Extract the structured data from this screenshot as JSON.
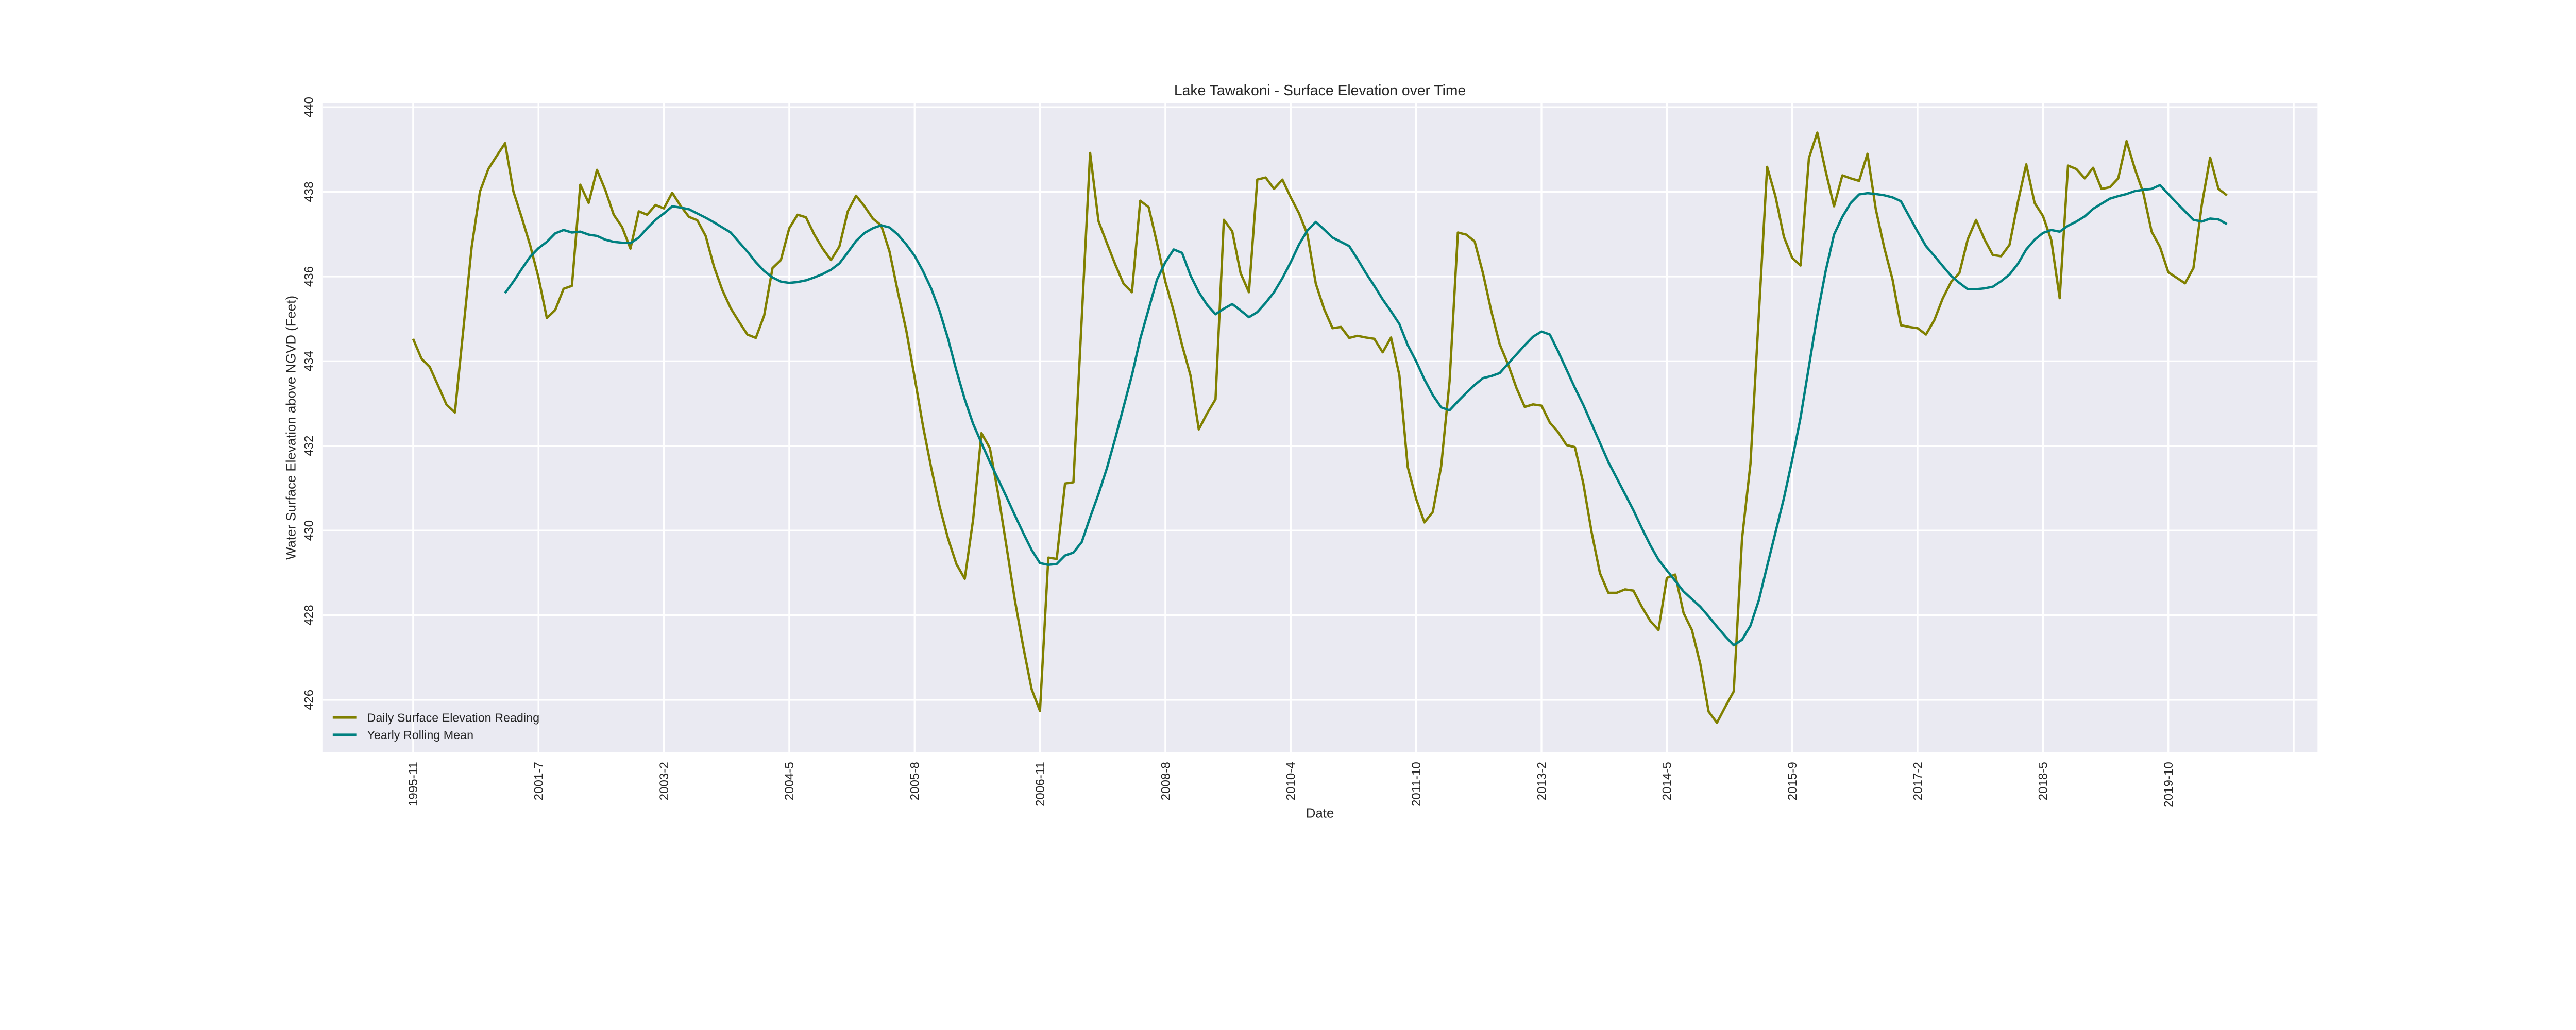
{
  "chart_data": {
    "type": "line",
    "title": "Lake Tawakoni - Surface Elevation over Time",
    "xlabel": "Date",
    "ylabel": "Water Surface Elevation above NGVD (Feet)",
    "x_is_index": true,
    "xlim": [
      -10.85,
      227.85
    ],
    "ylim": [
      424.76,
      440.1
    ],
    "x_ticks": [
      0,
      15,
      30,
      45,
      60,
      75,
      90,
      105,
      120,
      135,
      150,
      165,
      180,
      195,
      210,
      225
    ],
    "x_tick_labels": [
      "1995-11",
      "2001-7",
      "2003-2",
      "2004-5",
      "2005-8",
      "2006-11",
      "2008-8",
      "2010-4",
      "2011-10",
      "2013-2",
      "2014-5",
      "2015-9",
      "2017-2",
      "2018-5",
      "2019-10",
      ""
    ],
    "y_ticks": [
      426,
      428,
      430,
      432,
      434,
      436,
      438,
      440
    ],
    "y_tick_labels": [
      "426",
      "428",
      "430",
      "432",
      "434",
      "436",
      "438",
      "440"
    ],
    "grid": true,
    "legend_position": "lower-left",
    "background_color": "#eaeaf2",
    "series": [
      {
        "name": "Daily Surface Elevation Reading",
        "color": "#808000",
        "values": [
          434.53,
          434.06,
          433.86,
          433.42,
          432.97,
          432.79,
          434.73,
          436.69,
          438.01,
          438.54,
          438.85,
          439.15,
          438.01,
          437.39,
          436.74,
          435.98,
          435.02,
          435.21,
          435.71,
          435.78,
          438.17,
          437.74,
          438.52,
          438.04,
          437.46,
          437.17,
          436.66,
          437.54,
          437.46,
          437.69,
          437.61,
          437.98,
          437.67,
          437.41,
          437.33,
          436.96,
          436.23,
          435.68,
          435.25,
          434.93,
          434.63,
          434.55,
          435.08,
          436.2,
          436.39,
          437.14,
          437.46,
          437.4,
          436.99,
          436.66,
          436.39,
          436.71,
          437.54,
          437.91,
          437.66,
          437.37,
          437.21,
          436.59,
          435.63,
          434.73,
          433.62,
          432.47,
          431.47,
          430.56,
          429.81,
          429.21,
          428.86,
          430.26,
          432.3,
          431.95,
          430.86,
          429.61,
          428.35,
          427.25,
          426.25,
          425.74,
          429.36,
          429.33,
          431.11,
          431.14,
          435.03,
          438.92,
          437.31,
          436.79,
          436.29,
          435.83,
          435.63,
          437.79,
          437.64,
          436.79,
          435.88,
          435.18,
          434.38,
          433.67,
          432.39,
          432.77,
          433.1,
          437.34,
          437.07,
          436.08,
          435.63,
          438.29,
          438.34,
          438.07,
          438.29,
          437.87,
          437.49,
          436.99,
          435.83,
          435.23,
          434.78,
          434.81,
          434.55,
          434.6,
          434.56,
          434.53,
          434.21,
          434.56,
          433.67,
          431.5,
          430.75,
          430.19,
          430.44,
          431.52,
          433.52,
          437.04,
          436.99,
          436.83,
          436.08,
          435.18,
          434.4,
          433.93,
          433.37,
          432.92,
          432.98,
          432.95,
          432.55,
          432.32,
          432.02,
          431.97,
          431.12,
          429.96,
          428.99,
          428.53,
          428.53,
          428.61,
          428.58,
          428.2,
          427.87,
          427.65,
          428.88,
          428.96,
          428.05,
          427.65,
          426.85,
          425.72,
          425.46,
          425.84,
          426.2,
          429.81,
          431.57,
          435.08,
          438.59,
          437.89,
          436.94,
          436.44,
          436.26,
          438.8,
          439.4,
          438.49,
          437.66,
          438.39,
          438.32,
          438.26,
          438.9,
          437.59,
          436.69,
          435.93,
          434.85,
          434.81,
          434.78,
          434.63,
          434.97,
          435.48,
          435.87,
          436.08,
          436.88,
          437.34,
          436.88,
          436.51,
          436.48,
          436.75,
          437.76,
          438.65,
          437.74,
          437.43,
          436.86,
          435.49,
          438.62,
          438.54,
          438.32,
          438.57,
          438.07,
          438.11,
          438.32,
          439.2,
          438.54,
          437.98,
          437.06,
          436.7,
          436.1,
          435.97,
          435.84,
          436.2,
          437.69,
          438.81,
          438.07,
          437.92
        ]
      },
      {
        "name": "Yearly Rolling Mean",
        "color": "#008080",
        "values": [
          null,
          null,
          null,
          null,
          null,
          null,
          null,
          null,
          null,
          null,
          null,
          435.61,
          435.88,
          436.18,
          436.47,
          436.67,
          436.82,
          437.02,
          437.1,
          437.04,
          437.06,
          436.99,
          436.96,
          436.87,
          436.82,
          436.8,
          436.79,
          436.92,
          437.14,
          437.34,
          437.49,
          437.66,
          437.63,
          437.59,
          437.49,
          437.39,
          437.28,
          437.16,
          437.04,
          436.81,
          436.59,
          436.34,
          436.13,
          435.98,
          435.88,
          435.85,
          435.87,
          435.91,
          435.98,
          436.06,
          436.16,
          436.31,
          436.57,
          436.84,
          437.03,
          437.14,
          437.21,
          437.16,
          436.99,
          436.76,
          436.49,
          436.13,
          435.71,
          435.18,
          434.53,
          433.78,
          433.1,
          432.52,
          432.07,
          431.62,
          431.21,
          430.79,
          430.36,
          429.94,
          429.54,
          429.23,
          429.19,
          429.21,
          429.41,
          429.48,
          429.73,
          430.31,
          430.86,
          431.47,
          432.17,
          432.92,
          433.67,
          434.53,
          435.23,
          435.93,
          436.34,
          436.64,
          436.56,
          436.03,
          435.63,
          435.33,
          435.11,
          435.24,
          435.35,
          435.2,
          435.04,
          435.16,
          435.38,
          435.63,
          435.96,
          436.34,
          436.76,
          437.09,
          437.29,
          437.11,
          436.92,
          436.82,
          436.72,
          436.41,
          436.08,
          435.78,
          435.46,
          435.18,
          434.88,
          434.38,
          434.0,
          433.57,
          433.2,
          432.91,
          432.84,
          433.05,
          433.25,
          433.44,
          433.6,
          433.65,
          433.72,
          433.94,
          434.16,
          434.38,
          434.58,
          434.7,
          434.63,
          434.23,
          433.8,
          433.37,
          432.97,
          432.52,
          432.07,
          431.62,
          431.24,
          430.86,
          430.48,
          430.06,
          429.66,
          429.31,
          429.06,
          428.81,
          428.56,
          428.38,
          428.2,
          427.97,
          427.73,
          427.5,
          427.29,
          427.42,
          427.75,
          428.35,
          429.16,
          429.96,
          430.76,
          431.67,
          432.67,
          433.88,
          435.08,
          436.13,
          436.99,
          437.41,
          437.74,
          437.94,
          437.97,
          437.95,
          437.92,
          437.87,
          437.78,
          437.42,
          437.06,
          436.72,
          436.49,
          436.25,
          436.02,
          435.85,
          435.7,
          435.7,
          435.72,
          435.76,
          435.89,
          436.05,
          436.3,
          436.64,
          436.87,
          437.03,
          437.1,
          437.06,
          437.2,
          437.3,
          437.42,
          437.6,
          437.72,
          437.84,
          437.9,
          437.95,
          438.02,
          438.05,
          438.07,
          438.16,
          437.95,
          437.74,
          437.54,
          437.34,
          437.3,
          437.37,
          437.35,
          437.24
        ]
      }
    ]
  }
}
